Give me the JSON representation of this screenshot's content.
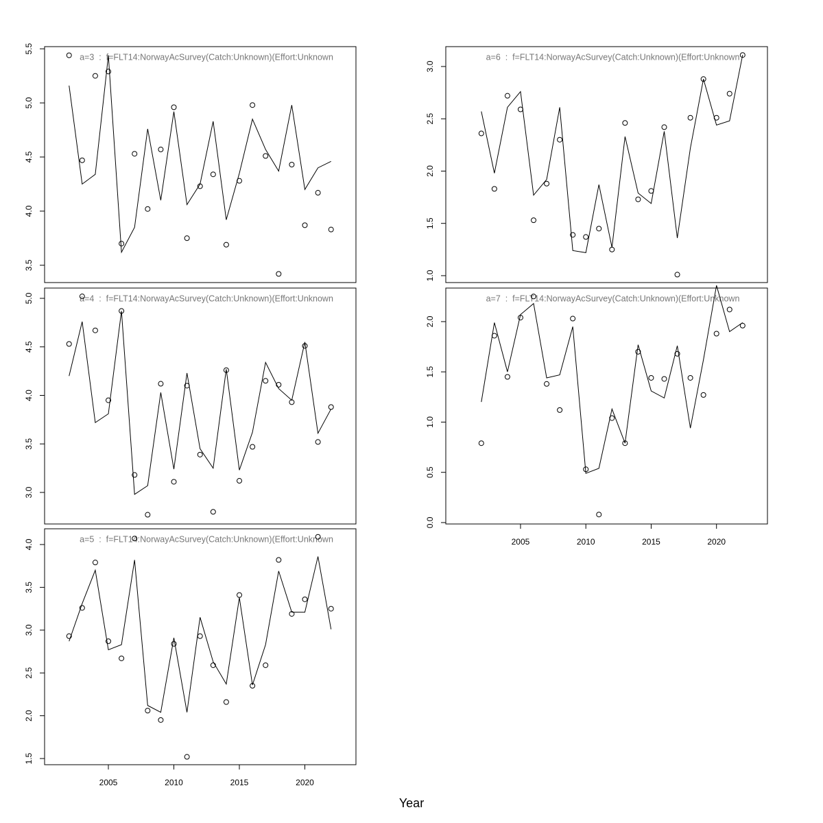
{
  "xlabel": "Year",
  "chart_data": [
    {
      "type": "line",
      "title": "a=3  :  f=FLT14:NorwayAcSurvey(Catch:Unknown)(Effort:Unknown",
      "x": [
        2002,
        2003,
        2004,
        2005,
        2006,
        2007,
        2008,
        2009,
        2010,
        2011,
        2012,
        2013,
        2014,
        2015,
        2016,
        2017,
        2018,
        2019,
        2020,
        2021,
        2022
      ],
      "series": [
        {
          "style": "points",
          "color": "#000000",
          "values": [
            5.44,
            4.47,
            5.25,
            5.29,
            3.7,
            4.53,
            4.02,
            4.57,
            4.96,
            3.75,
            4.23,
            4.34,
            3.69,
            4.28,
            4.98,
            4.51,
            3.42,
            4.43,
            3.87,
            4.17,
            3.83
          ]
        },
        {
          "style": "line",
          "color": "#000000",
          "values": [
            5.16,
            4.25,
            4.34,
            5.44,
            3.62,
            3.85,
            4.76,
            4.1,
            4.92,
            4.06,
            4.25,
            4.83,
            3.92,
            4.35,
            4.85,
            4.57,
            4.37,
            4.98,
            4.2,
            4.4,
            4.46
          ]
        }
      ],
      "xlim": [
        2000.13,
        2023.9
      ],
      "ylim": [
        3.34,
        5.52
      ],
      "yticks": [
        3.5,
        {
          "value": 4,
          "label": "4.0"
        },
        4.5,
        {
          "value": 5,
          "label": "5.0"
        },
        5.5
      ]
    },
    {
      "type": "line",
      "title": "a=4  :  f=FLT14:NorwayAcSurvey(Catch:Unknown)(Effort:Unknown",
      "x": [
        2002,
        2003,
        2004,
        2005,
        2006,
        2007,
        2008,
        2009,
        2010,
        2011,
        2012,
        2013,
        2014,
        2015,
        2016,
        2017,
        2018,
        2019,
        2020,
        2021,
        2022
      ],
      "series": [
        {
          "style": "points",
          "color": "#000000",
          "values": [
            4.53,
            5.02,
            4.67,
            3.95,
            4.87,
            3.18,
            2.77,
            4.12,
            3.11,
            4.1,
            3.39,
            2.8,
            4.26,
            3.12,
            3.47,
            4.15,
            4.11,
            3.93,
            4.51,
            3.52,
            3.88
          ]
        },
        {
          "style": "line",
          "color": "#000000",
          "values": [
            4.2,
            4.76,
            3.72,
            3.81,
            4.87,
            2.98,
            3.07,
            4.03,
            3.24,
            4.23,
            3.45,
            3.25,
            4.27,
            3.23,
            3.62,
            4.34,
            4.07,
            3.95,
            4.55,
            3.61,
            3.86
          ]
        }
      ],
      "xlim": [
        2000.13,
        2023.9
      ],
      "ylim": [
        2.675,
        5.106
      ],
      "yticks": [
        {
          "value": 3,
          "label": "3.0"
        },
        3.5,
        {
          "value": 4,
          "label": "4.0"
        },
        4.5,
        {
          "value": 5,
          "label": "5.0"
        }
      ]
    },
    {
      "type": "line",
      "title": "a=5  :  f=FLT14:NorwayAcSurvey(Catch:Unknown)(Effort:Unknown",
      "x": [
        2002,
        2003,
        2004,
        2005,
        2006,
        2007,
        2008,
        2009,
        2010,
        2011,
        2012,
        2013,
        2014,
        2015,
        2016,
        2017,
        2018,
        2019,
        2020,
        2021,
        2022
      ],
      "series": [
        {
          "style": "points",
          "color": "#000000",
          "values": [
            2.93,
            3.26,
            3.79,
            2.87,
            2.67,
            4.07,
            2.06,
            1.95,
            2.84,
            1.52,
            2.93,
            2.59,
            2.16,
            3.41,
            2.35,
            2.59,
            3.82,
            3.19,
            3.36,
            4.09,
            3.25
          ]
        },
        {
          "style": "line",
          "color": "#000000",
          "values": [
            2.87,
            3.31,
            3.7,
            2.77,
            2.83,
            3.82,
            2.12,
            2.04,
            2.91,
            2.04,
            3.15,
            2.63,
            2.37,
            3.38,
            2.36,
            2.83,
            3.69,
            3.21,
            3.21,
            3.86,
            3.01
          ]
        }
      ],
      "xlim": [
        2000.13,
        2023.9
      ],
      "ylim": [
        1.428,
        4.184
      ],
      "xticks": [
        2005,
        2010,
        2015,
        2020
      ],
      "yticks": [
        1.5,
        {
          "value": 2,
          "label": "2.0"
        },
        2.5,
        {
          "value": 3,
          "label": "3.0"
        },
        3.5,
        {
          "value": 4,
          "label": "4.0"
        }
      ]
    },
    {
      "type": "line",
      "title": "a=6  :  f=FLT14:NorwayAcSurvey(Catch:Unknown)(Effort:Unknown",
      "x": [
        2002,
        2003,
        2004,
        2005,
        2006,
        2007,
        2008,
        2009,
        2010,
        2011,
        2012,
        2013,
        2014,
        2015,
        2016,
        2017,
        2018,
        2019,
        2020,
        2021,
        2022
      ],
      "series": [
        {
          "style": "points",
          "color": "#000000",
          "values": [
            2.36,
            1.83,
            2.72,
            2.59,
            1.53,
            1.88,
            2.3,
            1.39,
            1.37,
            1.45,
            1.25,
            2.46,
            1.73,
            1.81,
            2.42,
            1.01,
            2.51,
            2.88,
            2.51,
            2.74,
            3.11
          ]
        },
        {
          "style": "line",
          "color": "#000000",
          "values": [
            2.57,
            1.98,
            2.61,
            2.76,
            1.77,
            1.92,
            2.61,
            1.24,
            1.22,
            1.87,
            1.27,
            2.33,
            1.79,
            1.69,
            2.38,
            1.36,
            2.22,
            2.88,
            2.44,
            2.48,
            3.11
          ]
        }
      ],
      "xlim": [
        1999.28,
        2023.9
      ],
      "ylim": [
        0.934,
        3.19
      ],
      "yticks": [
        {
          "value": 1,
          "label": "1.0"
        },
        1.5,
        {
          "value": 2,
          "label": "2.0"
        },
        2.5,
        {
          "value": 3,
          "label": "3.0"
        }
      ]
    },
    {
      "type": "line",
      "title": "a=7  :  f=FLT14:NorwayAcSurvey(Catch:Unknown)(Effort:Unknown",
      "x": [
        2002,
        2003,
        2004,
        2005,
        2006,
        2007,
        2008,
        2009,
        2010,
        2011,
        2012,
        2013,
        2014,
        2015,
        2016,
        2017,
        2018,
        2019,
        2020,
        2021,
        2022
      ],
      "series": [
        {
          "style": "points",
          "color": "#000000",
          "values": [
            0.79,
            1.86,
            1.45,
            2.04,
            2.25,
            1.38,
            1.12,
            2.03,
            0.53,
            0.08,
            1.04,
            0.79,
            1.7,
            1.44,
            1.43,
            1.68,
            1.44,
            1.27,
            1.88,
            2.12,
            1.96
          ]
        },
        {
          "style": "line",
          "color": "#000000",
          "values": [
            1.2,
            1.99,
            1.5,
            2.07,
            2.18,
            1.44,
            1.47,
            1.95,
            0.49,
            0.54,
            1.13,
            0.79,
            1.77,
            1.31,
            1.24,
            1.76,
            0.94,
            1.62,
            2.36,
            1.9,
            1.99
          ]
        }
      ],
      "xlim": [
        1999.28,
        2023.9
      ],
      "ylim": [
        -0.014,
        2.334
      ],
      "xticks": [
        2005,
        2010,
        2015,
        2020
      ],
      "yticks": [
        {
          "value": 0,
          "label": "0.0"
        },
        0.5,
        {
          "value": 1,
          "label": "1.0"
        },
        1.5,
        {
          "value": 2,
          "label": "2.0"
        }
      ]
    }
  ]
}
